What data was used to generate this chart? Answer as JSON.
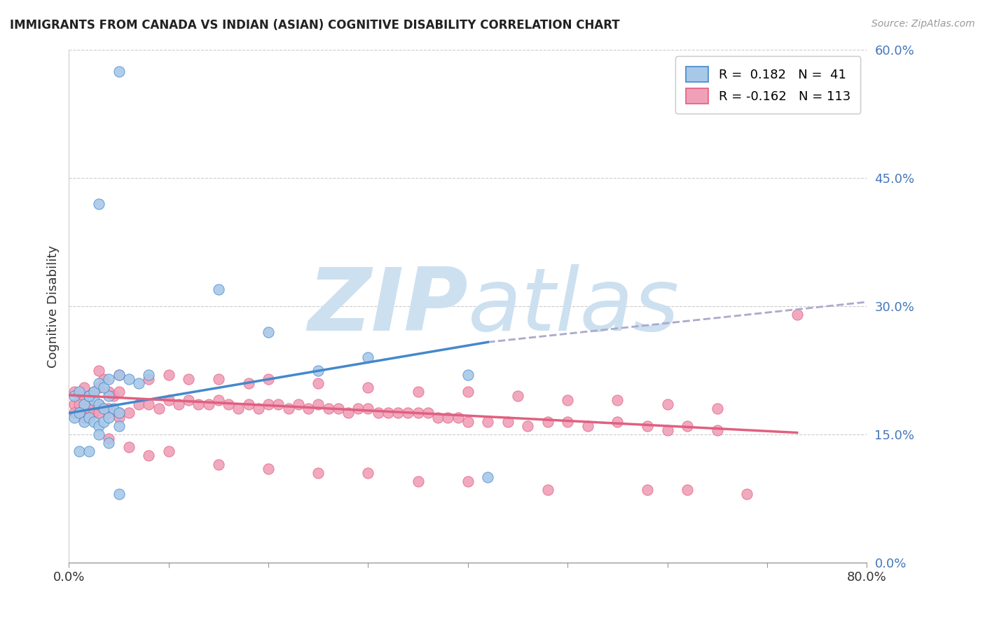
{
  "title": "IMMIGRANTS FROM CANADA VS INDIAN (ASIAN) COGNITIVE DISABILITY CORRELATION CHART",
  "source": "Source: ZipAtlas.com",
  "ylabel": "Cognitive Disability",
  "ytick_vals": [
    0.0,
    0.15,
    0.3,
    0.45,
    0.6
  ],
  "ytick_labels": [
    "0.0%",
    "15.0%",
    "30.0%",
    "45.0%",
    "60.0%"
  ],
  "xtick_vals": [
    0.0,
    0.1,
    0.2,
    0.3,
    0.4,
    0.5,
    0.6,
    0.7,
    0.8
  ],
  "xtick_labels": [
    "0.0%",
    "",
    "",
    "",
    "",
    "",
    "",
    "",
    "80.0%"
  ],
  "xmin": 0.0,
  "xmax": 0.8,
  "ymin": 0.0,
  "ymax": 0.6,
  "color_canada": "#a8c8e8",
  "color_indian": "#f0a0b8",
  "line_color_canada": "#4488cc",
  "line_color_indian": "#e06080",
  "line_color_extrapolated": "#aaaacc",
  "canada_scatter_x": [
    0.005,
    0.01,
    0.015,
    0.02,
    0.025,
    0.03,
    0.035,
    0.04,
    0.045,
    0.05,
    0.005,
    0.01,
    0.015,
    0.02,
    0.025,
    0.03,
    0.035,
    0.04,
    0.05,
    0.01,
    0.02,
    0.03,
    0.04,
    0.05,
    0.02,
    0.025,
    0.03,
    0.035,
    0.04,
    0.05,
    0.06,
    0.07,
    0.08,
    0.15,
    0.2,
    0.25,
    0.3,
    0.4,
    0.42,
    0.05,
    0.03
  ],
  "canada_scatter_y": [
    0.195,
    0.2,
    0.185,
    0.195,
    0.19,
    0.185,
    0.18,
    0.195,
    0.18,
    0.175,
    0.17,
    0.175,
    0.165,
    0.17,
    0.165,
    0.16,
    0.165,
    0.17,
    0.16,
    0.13,
    0.13,
    0.15,
    0.14,
    0.08,
    0.195,
    0.2,
    0.21,
    0.205,
    0.215,
    0.22,
    0.215,
    0.21,
    0.22,
    0.32,
    0.27,
    0.225,
    0.24,
    0.22,
    0.1,
    0.575,
    0.42
  ],
  "indian_scatter_x": [
    0.005,
    0.01,
    0.015,
    0.02,
    0.025,
    0.03,
    0.035,
    0.04,
    0.045,
    0.05,
    0.005,
    0.01,
    0.015,
    0.02,
    0.025,
    0.03,
    0.035,
    0.04,
    0.05,
    0.005,
    0.01,
    0.015,
    0.02,
    0.025,
    0.03,
    0.04,
    0.05,
    0.06,
    0.07,
    0.08,
    0.09,
    0.1,
    0.11,
    0.12,
    0.13,
    0.14,
    0.15,
    0.16,
    0.17,
    0.18,
    0.19,
    0.2,
    0.21,
    0.22,
    0.23,
    0.24,
    0.25,
    0.26,
    0.27,
    0.28,
    0.29,
    0.3,
    0.31,
    0.32,
    0.33,
    0.34,
    0.35,
    0.36,
    0.37,
    0.38,
    0.39,
    0.4,
    0.42,
    0.44,
    0.46,
    0.48,
    0.5,
    0.52,
    0.55,
    0.58,
    0.6,
    0.62,
    0.65,
    0.03,
    0.05,
    0.08,
    0.1,
    0.12,
    0.15,
    0.18,
    0.2,
    0.25,
    0.3,
    0.35,
    0.4,
    0.45,
    0.5,
    0.55,
    0.6,
    0.65,
    0.04,
    0.06,
    0.08,
    0.1,
    0.15,
    0.2,
    0.25,
    0.3,
    0.35,
    0.4,
    0.48,
    0.58,
    0.62,
    0.68,
    0.73
  ],
  "indian_scatter_y": [
    0.2,
    0.195,
    0.205,
    0.195,
    0.2,
    0.205,
    0.215,
    0.2,
    0.195,
    0.2,
    0.185,
    0.185,
    0.18,
    0.185,
    0.18,
    0.185,
    0.18,
    0.18,
    0.175,
    0.175,
    0.175,
    0.17,
    0.18,
    0.175,
    0.175,
    0.175,
    0.17,
    0.175,
    0.185,
    0.185,
    0.18,
    0.19,
    0.185,
    0.19,
    0.185,
    0.185,
    0.19,
    0.185,
    0.18,
    0.185,
    0.18,
    0.185,
    0.185,
    0.18,
    0.185,
    0.18,
    0.185,
    0.18,
    0.18,
    0.175,
    0.18,
    0.18,
    0.175,
    0.175,
    0.175,
    0.175,
    0.175,
    0.175,
    0.17,
    0.17,
    0.17,
    0.165,
    0.165,
    0.165,
    0.16,
    0.165,
    0.165,
    0.16,
    0.165,
    0.16,
    0.155,
    0.16,
    0.155,
    0.225,
    0.22,
    0.215,
    0.22,
    0.215,
    0.215,
    0.21,
    0.215,
    0.21,
    0.205,
    0.2,
    0.2,
    0.195,
    0.19,
    0.19,
    0.185,
    0.18,
    0.145,
    0.135,
    0.125,
    0.13,
    0.115,
    0.11,
    0.105,
    0.105,
    0.095,
    0.095,
    0.085,
    0.085,
    0.085,
    0.08,
    0.29
  ],
  "canada_line_x": [
    0.0,
    0.42
  ],
  "canada_line_y": [
    0.175,
    0.258
  ],
  "indian_line_x": [
    0.0,
    0.73
  ],
  "indian_line_y": [
    0.196,
    0.152
  ],
  "extrap_line_x": [
    0.42,
    0.8
  ],
  "extrap_line_y": [
    0.258,
    0.305
  ],
  "watermark_zip": "ZIP",
  "watermark_atlas": "atlas",
  "watermark_color": "#cce0f0",
  "background_color": "#ffffff",
  "grid_color": "#cccccc",
  "grid_style": "--"
}
